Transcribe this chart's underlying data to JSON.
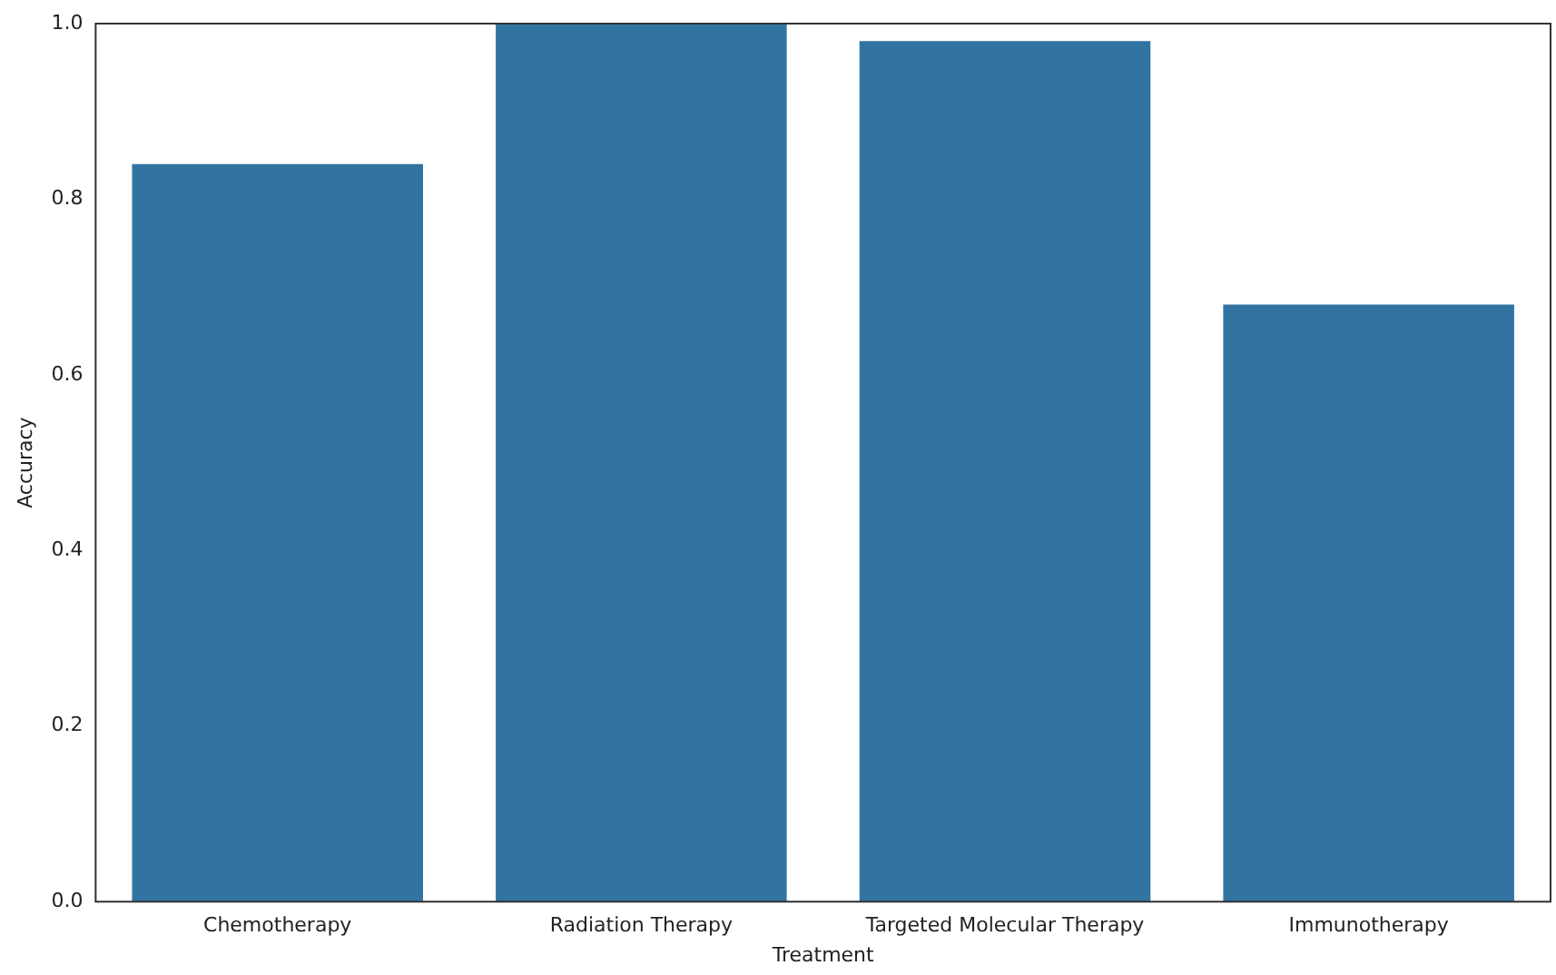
{
  "chart_data": {
    "type": "bar",
    "xlabel": "Treatment",
    "ylabel": "Accuracy",
    "categories": [
      "Chemotherapy",
      "Radiation Therapy",
      "Targeted Molecular Therapy",
      "Immunotherapy"
    ],
    "values": [
      0.84,
      1.0,
      0.98,
      0.68
    ],
    "color": "#3274a1",
    "ylim": [
      0,
      1
    ],
    "yticks": [
      {
        "value": 0,
        "label": "0.0"
      },
      0.2,
      0.4,
      0.6,
      0.8,
      {
        "value": 1,
        "label": "1.0"
      }
    ],
    "grid": false,
    "legend": false
  }
}
